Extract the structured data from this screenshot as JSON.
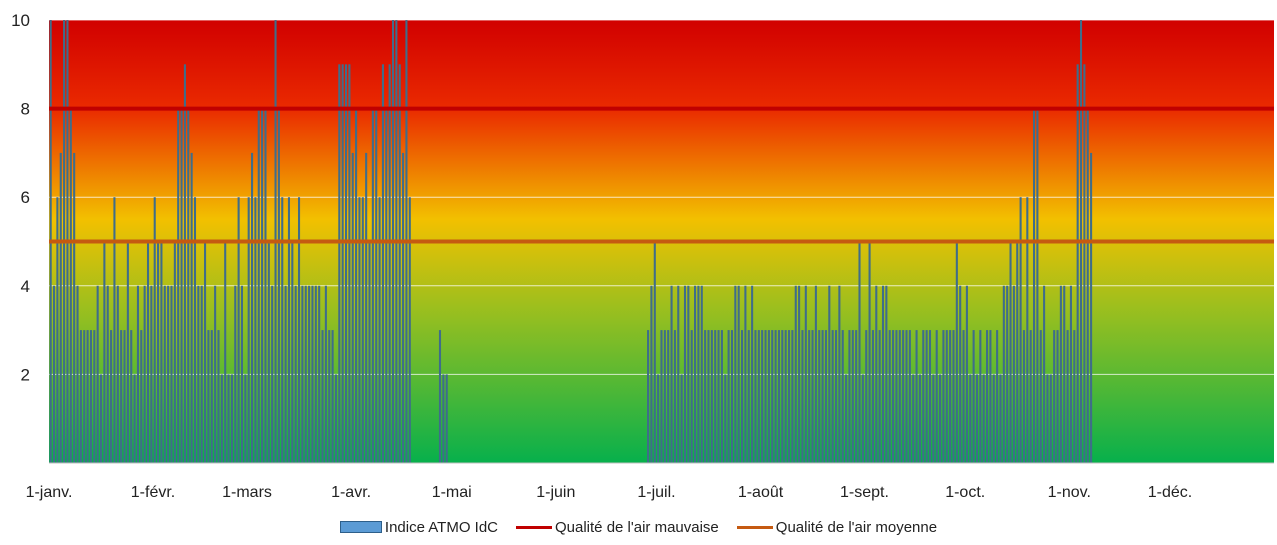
{
  "chart_data": {
    "type": "bar",
    "ylim": [
      0,
      10
    ],
    "y_ticks": [
      "2",
      "4",
      "6",
      "8",
      "10"
    ],
    "y_tick_values": [
      2,
      4,
      6,
      8,
      10
    ],
    "grid": true,
    "legend_position": "bottom",
    "background": "vertical gradient red (top) to yellow to green (bottom)",
    "x_tick_labels": [
      "1-janv.",
      "1-févr.",
      "1-mars",
      "1-avr.",
      "1-mai",
      "1-juin",
      "1-juil.",
      "1-août",
      "1-sept.",
      "1-oct.",
      "1-nov.",
      "1-déc."
    ],
    "x_tick_days": [
      1,
      32,
      60,
      91,
      121,
      152,
      182,
      213,
      244,
      274,
      305,
      335
    ],
    "days_in_year": 365,
    "series": [
      {
        "name": "Indice ATMO IdC",
        "color": "#3f6d8a",
        "day_ranges": [
          {
            "start": 1,
            "values": [
              10,
              4,
              6,
              7,
              10,
              10,
              8,
              7,
              4,
              3,
              3,
              3,
              3,
              3,
              4,
              2,
              5,
              4,
              3,
              6,
              4,
              3,
              3,
              5,
              3,
              2,
              4,
              3,
              4,
              5,
              4,
              6,
              5,
              5,
              4,
              4,
              4,
              5,
              8,
              8,
              9,
              8,
              7,
              6,
              4,
              4,
              5,
              3,
              3,
              4,
              3,
              2,
              5,
              2,
              2,
              4,
              6,
              4,
              2,
              6,
              7,
              6,
              8,
              8,
              8,
              5,
              4,
              10,
              8,
              6,
              4,
              6,
              5,
              4,
              6,
              4,
              4,
              4,
              4,
              4,
              4,
              3,
              4,
              3,
              3,
              2,
              9,
              9,
              9,
              9,
              7,
              8,
              6,
              6,
              7,
              5,
              8,
              8,
              6,
              9,
              8,
              9,
              10,
              10,
              9,
              7,
              10,
              6
            ]
          },
          {
            "start": 117,
            "values": [
              3,
              2,
              2
            ]
          },
          {
            "start": 179,
            "values": [
              3,
              4,
              5,
              2,
              3,
              3,
              3,
              4,
              3,
              4,
              2,
              4,
              4,
              3,
              4,
              4,
              4,
              3,
              3,
              3,
              3,
              3,
              3,
              2,
              3,
              3,
              4,
              4,
              3,
              4,
              3,
              4,
              3,
              3,
              3,
              3,
              3,
              3,
              3,
              3,
              3,
              3,
              3,
              3,
              4,
              4,
              3,
              4,
              3,
              3,
              4,
              3,
              3,
              3,
              4,
              3,
              3,
              4,
              3,
              2,
              3,
              3,
              3,
              5,
              2,
              3,
              5,
              3,
              4,
              3,
              4,
              4,
              3,
              3,
              3,
              3,
              3,
              3,
              3,
              2,
              3,
              2,
              3,
              3,
              3,
              2,
              3,
              2,
              3,
              3,
              3,
              3,
              5,
              4,
              3,
              4,
              2,
              3,
              2,
              3,
              2,
              3,
              3,
              2,
              3,
              2,
              4,
              4,
              5,
              4,
              5,
              6,
              3,
              6,
              3,
              8,
              8,
              3,
              4,
              2,
              2,
              3,
              3,
              4,
              4,
              3,
              4,
              3,
              9,
              10,
              9,
              8,
              7
            ]
          }
        ]
      },
      {
        "name": "Qualité de l'air mauvaise",
        "type": "line",
        "value": 8,
        "color": "#c00000"
      },
      {
        "name": "Qualité de l'air moyenne",
        "type": "line",
        "value": 5,
        "color": "#c55a11"
      }
    ]
  }
}
